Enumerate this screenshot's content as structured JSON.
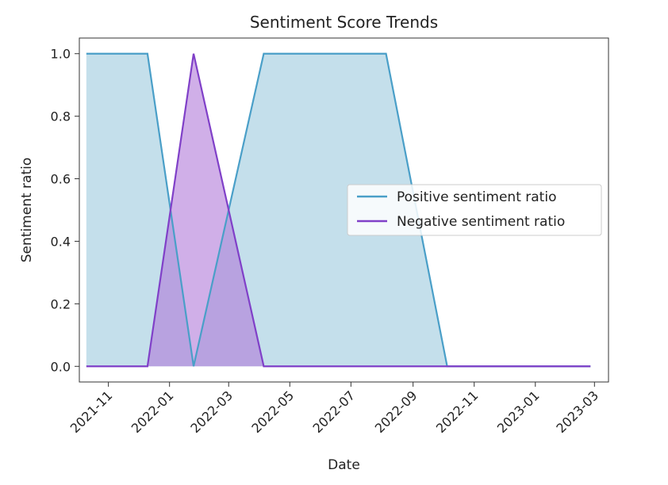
{
  "chart_data": {
    "type": "area",
    "title": "Sentiment Score Trends",
    "xlabel": "Date",
    "ylabel": "Sentiment ratio",
    "xlim": [
      "2021-10-03",
      "2023-03-15"
    ],
    "ylim": [
      -0.05,
      1.05
    ],
    "x_ticks": [
      "2021-11",
      "2022-01",
      "2022-03",
      "2022-05",
      "2022-07",
      "2022-09",
      "2022-11",
      "2023-01",
      "2023-03"
    ],
    "y_ticks": [
      "0.0",
      "0.2",
      "0.4",
      "0.6",
      "0.8",
      "1.0"
    ],
    "grid": false,
    "legend": {
      "position": "center-right",
      "entries": [
        "Positive sentiment ratio",
        "Negative sentiment ratio"
      ]
    },
    "x": [
      "2021-10-10",
      "2021-12-10",
      "2022-01-25",
      "2022-04-05",
      "2022-08-05",
      "2022-10-05",
      "2023-02-25"
    ],
    "series": [
      {
        "name": "Positive sentiment ratio",
        "values": [
          1.0,
          1.0,
          0.0,
          1.0,
          1.0,
          0.0,
          0.0
        ],
        "line_color": "#4a9fc8",
        "fill_color": "#b5d7e6"
      },
      {
        "name": "Negative sentiment ratio",
        "values": [
          0.0,
          0.0,
          1.0,
          0.0,
          0.0,
          0.0,
          0.0
        ],
        "line_color": "#8040c8",
        "fill_color": "#b07ad8"
      }
    ]
  }
}
